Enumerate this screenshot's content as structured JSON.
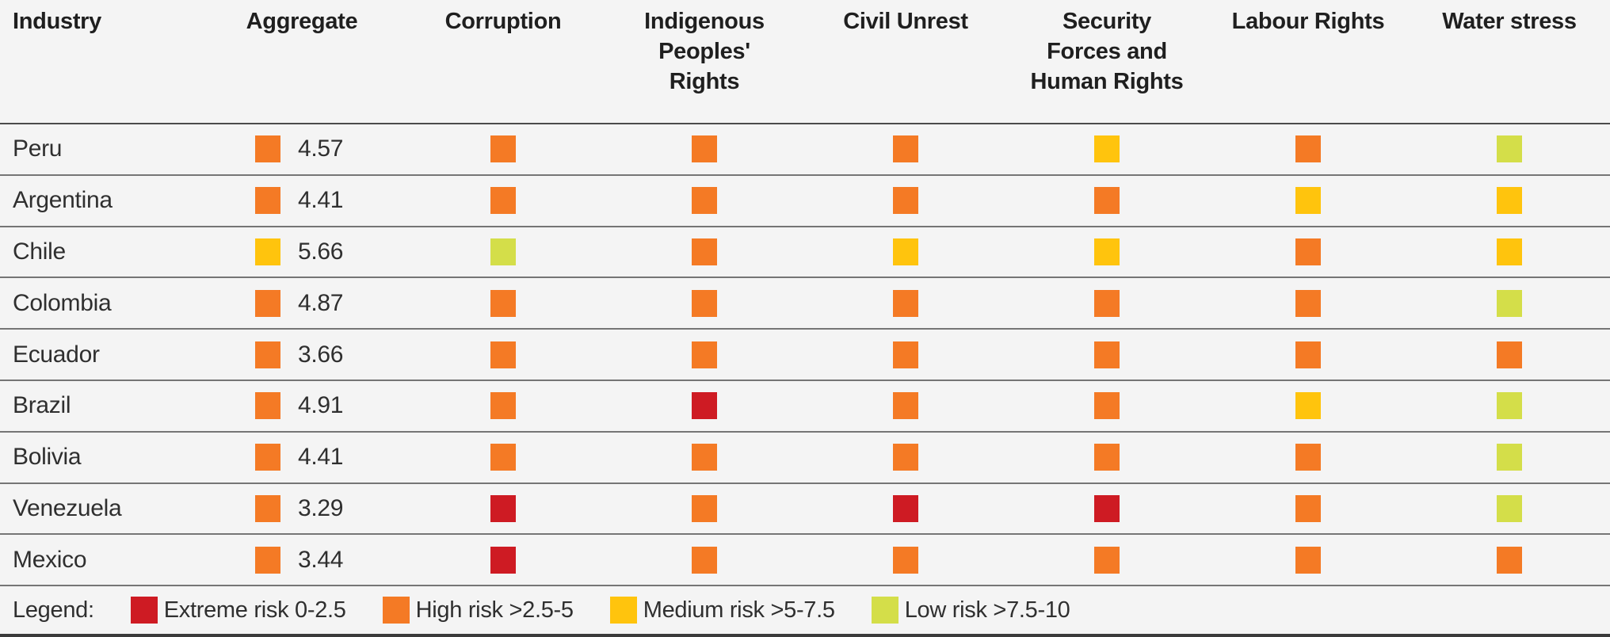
{
  "chart_data": {
    "type": "table",
    "description": "Country risk heatmap table with colored risk-level squares per category",
    "columns": [
      {
        "lines": [
          "Industry"
        ]
      },
      {
        "lines": [
          "Aggregate"
        ]
      },
      {
        "lines": [
          "Corruption"
        ]
      },
      {
        "lines": [
          "Indigenous",
          "Peoples'",
          "Rights"
        ]
      },
      {
        "lines": [
          "Civil Unrest"
        ]
      },
      {
        "lines": [
          "Security",
          "Forces and",
          "Human Rights"
        ]
      },
      {
        "lines": [
          "Labour Rights"
        ]
      },
      {
        "lines": [
          "Water stress"
        ]
      }
    ],
    "category_keys": [
      "corruption",
      "indigenous_peoples_rights",
      "civil_unrest",
      "security_forces_and_human_rights",
      "labour_rights",
      "water_stress"
    ],
    "rows": [
      {
        "country": "Peru",
        "aggregate_level": "high",
        "aggregate_value": "4.57",
        "levels": [
          "high",
          "high",
          "high",
          "medium",
          "high",
          "low"
        ]
      },
      {
        "country": "Argentina",
        "aggregate_level": "high",
        "aggregate_value": "4.41",
        "levels": [
          "high",
          "high",
          "high",
          "high",
          "medium",
          "medium"
        ]
      },
      {
        "country": "Chile",
        "aggregate_level": "medium",
        "aggregate_value": "5.66",
        "levels": [
          "low",
          "high",
          "medium",
          "medium",
          "high",
          "medium"
        ]
      },
      {
        "country": "Colombia",
        "aggregate_level": "high",
        "aggregate_value": "4.87",
        "levels": [
          "high",
          "high",
          "high",
          "high",
          "high",
          "low"
        ]
      },
      {
        "country": "Ecuador",
        "aggregate_level": "high",
        "aggregate_value": "3.66",
        "levels": [
          "high",
          "high",
          "high",
          "high",
          "high",
          "high"
        ]
      },
      {
        "country": "Brazil",
        "aggregate_level": "high",
        "aggregate_value": "4.91",
        "levels": [
          "high",
          "extreme",
          "high",
          "high",
          "medium",
          "low"
        ]
      },
      {
        "country": "Bolivia",
        "aggregate_level": "high",
        "aggregate_value": "4.41",
        "levels": [
          "high",
          "high",
          "high",
          "high",
          "high",
          "low"
        ]
      },
      {
        "country": "Venezuela",
        "aggregate_level": "high",
        "aggregate_value": "3.29",
        "levels": [
          "extreme",
          "high",
          "extreme",
          "extreme",
          "high",
          "low"
        ]
      },
      {
        "country": "Mexico",
        "aggregate_level": "high",
        "aggregate_value": "3.44",
        "levels": [
          "extreme",
          "high",
          "high",
          "high",
          "high",
          "high"
        ]
      }
    ],
    "legend": {
      "title": "Legend:",
      "items": [
        {
          "level": "extreme",
          "label": "Extreme risk 0-2.5"
        },
        {
          "level": "high",
          "label": "High risk >2.5-5"
        },
        {
          "level": "medium",
          "label": "Medium risk >5-7.5"
        },
        {
          "level": "low",
          "label": "Low risk >7.5-10"
        }
      ]
    },
    "colors": {
      "extreme": "#CE1B23",
      "high": "#F47A25",
      "medium": "#FFC40D",
      "low": "#D4DE49",
      "background": "#F4F4F4"
    },
    "value_range": [
      0,
      10
    ]
  }
}
